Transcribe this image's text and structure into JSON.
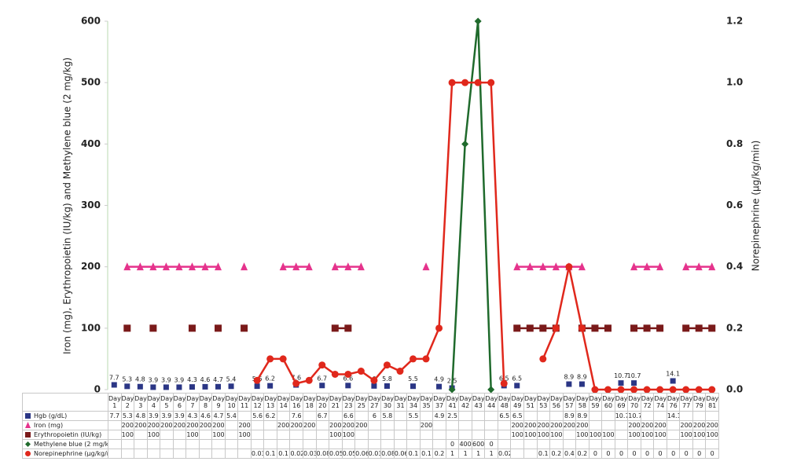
{
  "chart_data": {
    "type": "line",
    "ylabel": "Iron (mg), Erythropoietin (IU/kg) and Methylene blue (2 mg/kg)",
    "y2label": "Norepinephrine (μg/kg/min)",
    "categories": [
      "Day 1",
      "Day 2",
      "Day 3",
      "Day 4",
      "Day 5",
      "Day 6",
      "Day 7",
      "Day 8",
      "Day 9",
      "Day 10",
      "Day 11",
      "Day 12",
      "Day 13",
      "Day 14",
      "Day 16",
      "Day 18",
      "Day 20",
      "Day 21",
      "Day 23",
      "Day 25",
      "Day 27",
      "Day 30",
      "Day 31",
      "Day 34",
      "Day 35",
      "Day 37",
      "Day 41",
      "Day 42",
      "Day 43",
      "Day 44",
      "Day 48",
      "Day 49",
      "Day 51",
      "Day 53",
      "Day 56",
      "Day 57",
      "Day 58",
      "Day 59",
      "Day 60",
      "Day 69",
      "Day 70",
      "Day 72",
      "Day 74",
      "Day 76",
      "Day 77",
      "Day 79",
      "Day 81"
    ],
    "ylim": [
      0,
      600
    ],
    "yticks": [
      0,
      100,
      200,
      300,
      400,
      500,
      600
    ],
    "y2lim": [
      0,
      1.2
    ],
    "y2ticks": [
      {
        "value": 0,
        "label": "0.0"
      },
      {
        "value": 0.2,
        "label": "0.2"
      },
      {
        "value": 0.4,
        "label": "0.4"
      },
      {
        "value": 0.6,
        "label": "0.6"
      },
      {
        "value": 0.8,
        "label": "0.8"
      },
      {
        "value": 1.0,
        "label": "1.0"
      },
      {
        "value": 1.2,
        "label": "1.2"
      }
    ],
    "series": [
      {
        "name": "Hgb (g/dL)",
        "color": "#2b3685",
        "marker": "square",
        "line": false,
        "values": [
          7.7,
          5.3,
          4.8,
          3.9,
          3.9,
          3.9,
          4.3,
          4.6,
          4.7,
          5.4,
          null,
          5.6,
          6.2,
          null,
          7.6,
          null,
          6.7,
          null,
          6.6,
          null,
          6,
          5.8,
          null,
          5.5,
          null,
          4.9,
          2.5,
          null,
          null,
          null,
          6.5,
          6.5,
          null,
          null,
          null,
          8.9,
          8.9,
          null,
          null,
          10.7,
          10.7,
          null,
          null,
          14.1,
          null,
          null,
          null
        ]
      },
      {
        "name": "Iron (mg)",
        "color": "#e5338c",
        "marker": "triangle",
        "line": true,
        "values": [
          null,
          200,
          200,
          200,
          200,
          200,
          200,
          200,
          200,
          null,
          200,
          null,
          null,
          200,
          200,
          200,
          null,
          200,
          200,
          200,
          null,
          null,
          null,
          null,
          200,
          null,
          null,
          null,
          null,
          null,
          null,
          200,
          200,
          200,
          200,
          200,
          200,
          null,
          null,
          null,
          200,
          200,
          200,
          null,
          200,
          200,
          200
        ]
      },
      {
        "name": "Erythropoietin (IU/kg)",
        "color": "#7a1a1a",
        "marker": "square",
        "line": true,
        "values": [
          null,
          100,
          null,
          100,
          null,
          null,
          100,
          null,
          100,
          null,
          100,
          null,
          null,
          null,
          null,
          null,
          null,
          100,
          100,
          null,
          null,
          null,
          null,
          null,
          null,
          null,
          null,
          null,
          null,
          null,
          null,
          100,
          100,
          100,
          100,
          null,
          100,
          100,
          100,
          null,
          100,
          100,
          100,
          null,
          100,
          100,
          100
        ]
      },
      {
        "name": "Methylene blue (2 mg/kg)",
        "color": "#1f6a2c",
        "marker": "diamond",
        "line": true,
        "values": [
          null,
          null,
          null,
          null,
          null,
          null,
          null,
          null,
          null,
          null,
          null,
          null,
          null,
          null,
          null,
          null,
          null,
          null,
          null,
          null,
          null,
          null,
          null,
          null,
          null,
          null,
          0,
          400,
          600,
          0,
          null,
          null,
          null,
          null,
          null,
          null,
          null,
          null,
          null,
          null,
          null,
          null,
          null,
          null,
          null,
          null,
          null
        ]
      },
      {
        "name": "Norepinephrine (μg/kg/min)",
        "color": "#e0281c",
        "marker": "circle",
        "line": true,
        "axis": "y2",
        "values": [
          null,
          null,
          null,
          null,
          null,
          null,
          null,
          null,
          null,
          null,
          null,
          0.03,
          0.1,
          0.1,
          0.02,
          0.03,
          0.08,
          0.05,
          0.05,
          0.06,
          0.03,
          0.08,
          0.06,
          0.1,
          0.1,
          0.2,
          1,
          1,
          1,
          1,
          0.02,
          null,
          null,
          0.1,
          0.2,
          0.4,
          0.2,
          0,
          0,
          0,
          0,
          0,
          0,
          0,
          0,
          0,
          0
        ]
      }
    ]
  }
}
